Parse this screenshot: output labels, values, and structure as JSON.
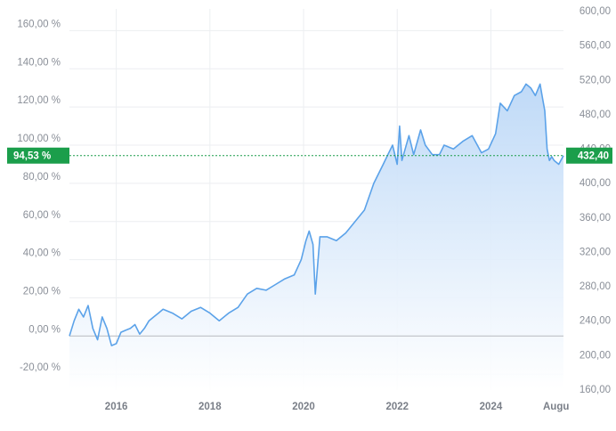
{
  "chart_data": {
    "type": "area",
    "left_axis": {
      "ticks": [
        -20,
        0,
        20,
        40,
        60,
        80,
        100,
        120,
        140,
        160
      ],
      "tick_labels": [
        "-20,00 %",
        "0,00 %",
        "20,00 %",
        "40,00 %",
        "60,00 %",
        "80,00 %",
        "100,00 %",
        "120,00 %",
        "140,00 %",
        "160,00 %"
      ],
      "range": [
        -28.3,
        171.4
      ]
    },
    "right_axis": {
      "ticks": [
        160,
        200,
        240,
        280,
        320,
        360,
        400,
        440,
        480,
        520,
        560,
        600
      ],
      "tick_labels": [
        "160,00",
        "200,00",
        "240,00",
        "280,00",
        "320,00",
        "360,00",
        "400,00",
        "440,00",
        "480,00",
        "520,00",
        "560,00",
        "600,00"
      ]
    },
    "x_axis": {
      "ticks": [
        2016,
        2018,
        2020,
        2022,
        2024,
        2025.6
      ],
      "tick_labels": [
        "2016",
        "2018",
        "2020",
        "2022",
        "2024",
        "Augu"
      ],
      "range": [
        2015.0,
        2025.55
      ]
    },
    "baseline_percent": 0,
    "current": {
      "percent": 94.53,
      "percent_label": "94,53 %",
      "price": 432.4,
      "price_label": "432,40"
    },
    "series": [
      {
        "x": [
          2015.0,
          2015.1,
          2015.2,
          2015.3,
          2015.4,
          2015.5,
          2015.6,
          2015.7,
          2015.8,
          2015.9,
          2016.0,
          2016.1,
          2016.2,
          2016.3,
          2016.4,
          2016.5,
          2016.6,
          2016.7,
          2016.8,
          2016.9,
          2017.0,
          2017.2,
          2017.4,
          2017.6,
          2017.8,
          2018.0,
          2018.2,
          2018.4,
          2018.6,
          2018.8,
          2019.0,
          2019.2,
          2019.4,
          2019.6,
          2019.8,
          2019.95,
          2020.05,
          2020.12,
          2020.2,
          2020.25,
          2020.35,
          2020.5,
          2020.7,
          2020.9,
          2021.1,
          2021.3,
          2021.5,
          2021.7,
          2021.8,
          2021.9,
          2022.0,
          2022.05,
          2022.1,
          2022.25,
          2022.35,
          2022.5,
          2022.6,
          2022.75,
          2022.9,
          2023.0,
          2023.2,
          2023.4,
          2023.6,
          2023.8,
          2023.95,
          2024.1,
          2024.2,
          2024.35,
          2024.5,
          2024.65,
          2024.75,
          2024.85,
          2024.95,
          2025.05,
          2025.1,
          2025.15,
          2025.2,
          2025.25,
          2025.3,
          2025.35,
          2025.45,
          2025.55
        ],
        "values": [
          0,
          8,
          14,
          10,
          16,
          4,
          -2,
          10,
          4,
          -5,
          -4,
          2,
          3,
          4,
          6,
          1,
          4,
          8,
          10,
          12,
          14,
          12,
          9,
          13,
          15,
          12,
          8,
          12,
          15,
          22,
          25,
          24,
          27,
          30,
          32,
          40,
          50,
          55,
          48,
          22,
          52,
          52,
          50,
          54,
          60,
          66,
          80,
          90,
          95,
          100,
          90,
          110,
          92,
          105,
          95,
          108,
          100,
          95,
          95,
          100,
          98,
          102,
          105,
          96,
          98,
          106,
          122,
          118,
          126,
          128,
          132,
          130,
          126,
          132,
          125,
          118,
          98,
          92,
          94,
          92,
          90,
          94.53
        ]
      }
    ],
    "colors": {
      "line": "#5ba2e9",
      "area_top": "#bcd8f7",
      "area_bottom": "#ffffff",
      "current": "#1b9e4b",
      "baseline": "#c4c7cc",
      "grid": "#eceef1"
    }
  }
}
